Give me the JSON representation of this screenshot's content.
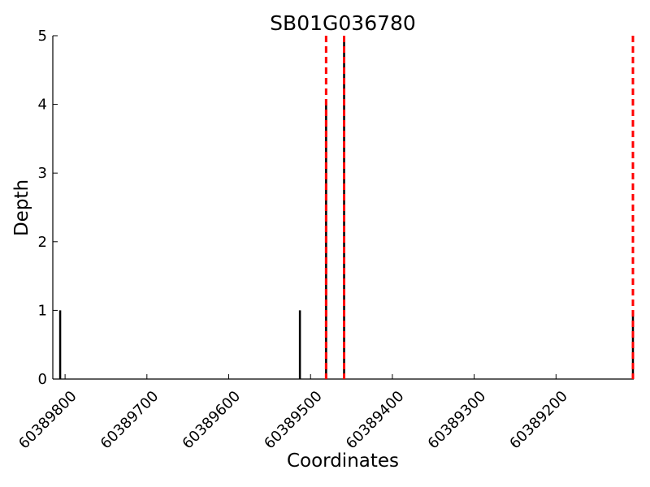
{
  "chart_data": {
    "type": "bar",
    "title": "SB01G036780",
    "xlabel": "Coordinates",
    "ylabel": "Depth",
    "x_reversed": true,
    "xlim": [
      60389815,
      60389105
    ],
    "ylim": [
      0,
      5
    ],
    "x_ticks": [
      60389800,
      60389700,
      60389600,
      60389500,
      60389400,
      60389300,
      60389200
    ],
    "x_tick_labels": [
      "60389800",
      "60389700",
      "60389600",
      "60389500",
      "60389400",
      "60389300",
      "60389200"
    ],
    "y_ticks": [
      0,
      1,
      2,
      3,
      4,
      5
    ],
    "y_tick_labels": [
      "0",
      "1",
      "2",
      "3",
      "4",
      "5"
    ],
    "grid": false,
    "bars": [
      {
        "x": 60389806,
        "depth": 1
      },
      {
        "x": 60389513,
        "depth": 1
      },
      {
        "x": 60389481,
        "depth": 4
      },
      {
        "x": 60389459,
        "depth": 5
      },
      {
        "x": 60389106,
        "depth": 1
      }
    ],
    "vlines": [
      60389481,
      60389459,
      60389106
    ],
    "colors": {
      "bar": "#000000",
      "vline": "#ff0000",
      "axis": "#000000"
    }
  }
}
